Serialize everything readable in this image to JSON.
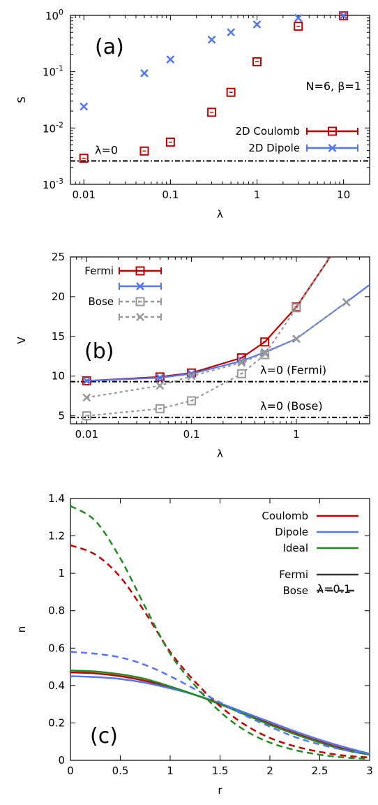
{
  "chart_data": [
    {
      "type": "scatter",
      "panel_label": "(a)",
      "xlabel": "λ",
      "ylabel": "S",
      "xscale": "log",
      "yscale": "log",
      "xlim": [
        0.007,
        20
      ],
      "ylim": [
        0.001,
        1
      ],
      "x_ticks": [
        0.01,
        0.1,
        1,
        10
      ],
      "x_tick_labels": [
        "0.01",
        "0.1",
        "1",
        "10"
      ],
      "y_ticks": [
        0.001,
        0.01,
        0.1,
        1
      ],
      "y_tick_labels": [
        {
          "base": "10",
          "exp": "-3"
        },
        {
          "base": "10",
          "exp": "-2"
        },
        {
          "base": "10",
          "exp": "-1"
        },
        {
          "base": "10",
          "exp": "0"
        }
      ],
      "annotation": "N=6, β=1",
      "reference_line": {
        "label": "λ=0",
        "y": 0.0026
      },
      "legend_position": "bottom-right",
      "series": [
        {
          "name": "2D Coulomb",
          "color": "#c00000",
          "marker": "square",
          "x": [
            0.01,
            0.05,
            0.1,
            0.3,
            0.5,
            1,
            3,
            10
          ],
          "y": [
            0.0029,
            0.0039,
            0.0056,
            0.019,
            0.043,
            0.15,
            0.64,
            0.98
          ]
        },
        {
          "name": "2D Dipole",
          "color": "#5577ee",
          "marker": "x",
          "x": [
            0.01,
            0.05,
            0.1,
            0.3,
            0.5,
            1,
            3,
            10
          ],
          "y": [
            0.024,
            0.094,
            0.165,
            0.37,
            0.5,
            0.69,
            0.9,
            0.99
          ]
        }
      ]
    },
    {
      "type": "line",
      "panel_label": "(b)",
      "xlabel": "λ",
      "ylabel": "V",
      "xscale": "log",
      "xlim": [
        0.007,
        5
      ],
      "ylim": [
        4,
        25
      ],
      "x_ticks": [
        0.01,
        0.1,
        1
      ],
      "x_tick_labels": [
        "0.01",
        "0.1",
        "1"
      ],
      "y_ticks": [
        5,
        10,
        15,
        20,
        25
      ],
      "y_tick_labels": [
        "5",
        "10",
        "15",
        "20",
        "25"
      ],
      "reference_lines": [
        {
          "label": "λ=0 (Fermi)",
          "y": 9.3
        },
        {
          "label": "λ=0 (Bose)",
          "y": 4.8
        }
      ],
      "legend_position": "top-left",
      "series": [
        {
          "legend": "Fermi",
          "color": "#c00000",
          "marker": "square",
          "dashed": false,
          "x": [
            0.01,
            0.05,
            0.1,
            0.3,
            0.5,
            1,
            3
          ],
          "y": [
            9.4,
            9.9,
            10.4,
            12.3,
            14.3,
            18.7,
            28
          ]
        },
        {
          "legend": "",
          "color": "#5577ee",
          "marker": "x",
          "dashed": false,
          "x": [
            0.01,
            0.05,
            0.1,
            0.3,
            0.5,
            1,
            3,
            5
          ],
          "y": [
            9.4,
            9.8,
            10.3,
            11.9,
            13.0,
            14.7,
            19.3,
            21.5
          ]
        },
        {
          "legend": "Bose",
          "color": "#999999",
          "marker": "square",
          "dashed": true,
          "x": [
            0.01,
            0.05,
            0.1,
            0.3,
            0.5,
            1,
            3
          ],
          "y": [
            5.0,
            5.9,
            6.9,
            10.3,
            12.7,
            18.6,
            28
          ]
        },
        {
          "legend": "",
          "color": "#999999",
          "marker": "x",
          "dashed": true,
          "x": [
            0.01,
            0.05,
            0.1,
            0.3,
            0.5,
            1,
            3
          ],
          "y": [
            7.3,
            8.8,
            10.0,
            11.7,
            12.9,
            14.7,
            19.3
          ]
        }
      ]
    },
    {
      "type": "line",
      "panel_label": "(c)",
      "xlabel": "r",
      "ylabel": "n",
      "xlim": [
        0,
        3
      ],
      "ylim": [
        0,
        1.4
      ],
      "x_ticks": [
        0,
        0.5,
        1,
        1.5,
        2,
        2.5,
        3
      ],
      "x_tick_labels": [
        "0",
        "0.5",
        "1",
        "1.5",
        "2",
        "2.5",
        "3"
      ],
      "y_ticks": [
        0,
        0.2,
        0.4,
        0.6,
        0.8,
        1,
        1.2,
        1.4
      ],
      "y_tick_labels": [
        "0",
        "0.2",
        "0.4",
        "0.6",
        "0.8",
        "1",
        "1.2",
        "1.4"
      ],
      "annotation": "λ=0.1",
      "legend_position": "top-right",
      "legend": [
        {
          "name": "Coulomb",
          "color": "#c00000",
          "dashed": false
        },
        {
          "name": "Dipole",
          "color": "#5577ee",
          "dashed": false
        },
        {
          "name": "Ideal",
          "color": "#228b22",
          "dashed": false
        },
        {
          "name": "Fermi",
          "color": "#333333",
          "dashed": false
        },
        {
          "name": "Bose",
          "color": "#333333",
          "dashed": true
        }
      ],
      "x": [
        0,
        0.25,
        0.5,
        0.75,
        1,
        1.25,
        1.5,
        1.75,
        2,
        2.25,
        2.5,
        2.75,
        3
      ],
      "series": [
        {
          "interaction": "Coulomb",
          "statistics": "Fermi",
          "color": "#c00000",
          "dashed": false,
          "y": [
            0.47,
            0.465,
            0.45,
            0.425,
            0.39,
            0.35,
            0.3,
            0.25,
            0.195,
            0.145,
            0.1,
            0.06,
            0.035
          ]
        },
        {
          "interaction": "Dipole",
          "statistics": "Fermi",
          "color": "#5577ee",
          "dashed": false,
          "y": [
            0.45,
            0.445,
            0.435,
            0.415,
            0.385,
            0.35,
            0.305,
            0.255,
            0.205,
            0.155,
            0.11,
            0.07,
            0.035
          ]
        },
        {
          "interaction": "Ideal",
          "statistics": "Fermi",
          "color": "#228b22",
          "dashed": false,
          "y": [
            0.48,
            0.475,
            0.46,
            0.435,
            0.395,
            0.35,
            0.3,
            0.245,
            0.19,
            0.14,
            0.095,
            0.055,
            0.03
          ]
        },
        {
          "interaction": "Coulomb",
          "statistics": "Bose",
          "color": "#c00000",
          "dashed": true,
          "y": [
            1.15,
            1.1,
            0.98,
            0.79,
            0.58,
            0.42,
            0.29,
            0.19,
            0.12,
            0.075,
            0.045,
            0.025,
            0.015
          ]
        },
        {
          "interaction": "Dipole",
          "statistics": "Bose",
          "color": "#5577ee",
          "dashed": true,
          "y": [
            0.58,
            0.57,
            0.55,
            0.51,
            0.45,
            0.38,
            0.31,
            0.24,
            0.18,
            0.125,
            0.085,
            0.055,
            0.035
          ]
        },
        {
          "interaction": "Ideal",
          "statistics": "Bose",
          "color": "#228b22",
          "dashed": true,
          "y": [
            1.36,
            1.28,
            1.08,
            0.82,
            0.57,
            0.4,
            0.26,
            0.16,
            0.095,
            0.055,
            0.03,
            0.015,
            0.008
          ]
        }
      ]
    }
  ]
}
